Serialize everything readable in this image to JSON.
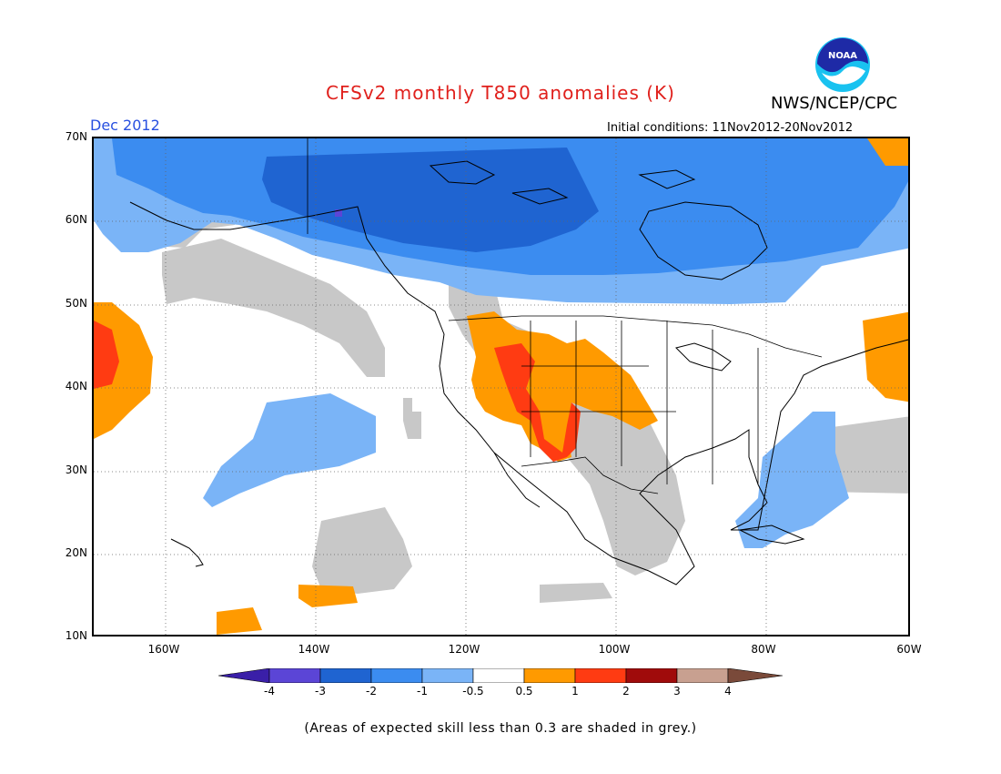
{
  "header": {
    "title": "CFSv2 monthly T850 anomalies (K)",
    "month": "Dec 2012",
    "initial_conditions": "Initial conditions: 11Nov2012-20Nov2012",
    "agency": "NWS/NCEP/CPC",
    "logo_text": "NOAA"
  },
  "map": {
    "lat_labels": [
      "70N",
      "60N",
      "50N",
      "40N",
      "30N",
      "20N",
      "10N"
    ],
    "lon_labels": [
      "160W",
      "140W",
      "120W",
      "100W",
      "80W",
      "60W"
    ],
    "anomaly_classes": [
      {
        "range": "< -4",
        "color": "#3a1fa8"
      },
      {
        "range": "-4 to -3",
        "color": "#5b45d6"
      },
      {
        "range": "-3 to -2",
        "color": "#1f64d1"
      },
      {
        "range": "-2 to -1",
        "color": "#3b8cf0"
      },
      {
        "range": "-1 to -0.5",
        "color": "#7ab4f7"
      },
      {
        "range": "-0.5 to 0.5",
        "color": "#ffffff"
      },
      {
        "range": "0.5 to 1",
        "color": "#ff9a00"
      },
      {
        "range": "1 to 2",
        "color": "#ff3b12"
      },
      {
        "range": "2 to 3",
        "color": "#a00b0b"
      },
      {
        "range": "3 to 4",
        "color": "#c8a090"
      },
      {
        "range": "> 4",
        "color": "#7a4a3a"
      }
    ],
    "low_skill_color": "#c8c8c8"
  },
  "colorbar": {
    "labels": [
      "-4",
      "-3",
      "-2",
      "-1",
      "-0.5",
      "0.5",
      "1",
      "2",
      "3",
      "4"
    ]
  },
  "footnote": "(Areas of expected skill less than 0.3 are shaded in grey.)"
}
